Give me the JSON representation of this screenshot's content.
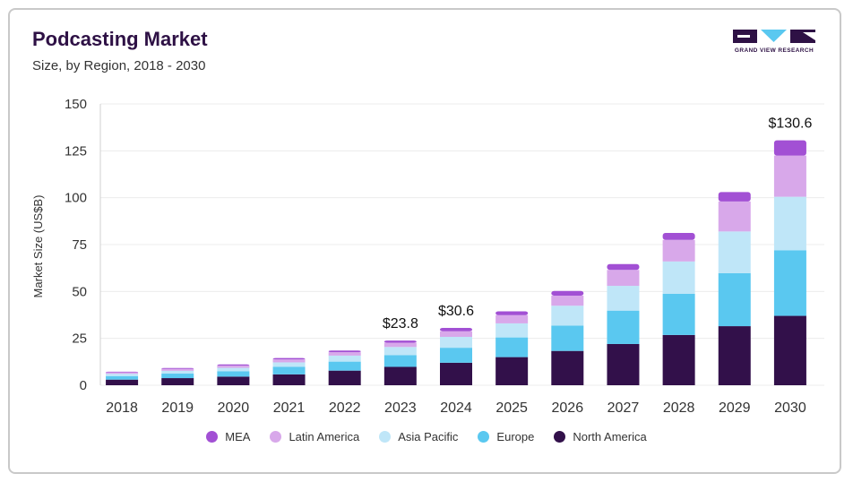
{
  "header": {
    "title": "Podcasting Market",
    "subtitle": "Size, by Region, 2018 - 2030",
    "logo_text": "GRAND VIEW RESEARCH"
  },
  "chart_data": {
    "type": "bar",
    "stacked": true,
    "categories": [
      "2018",
      "2019",
      "2020",
      "2021",
      "2022",
      "2023",
      "2024",
      "2025",
      "2026",
      "2027",
      "2028",
      "2029",
      "2030"
    ],
    "ylabel": "Market Size (US$B)",
    "xlabel": "",
    "ylim": [
      0,
      150
    ],
    "yticks": [
      0,
      25,
      50,
      75,
      100,
      125,
      150
    ],
    "grid": "horizontal",
    "legend_position": "bottom",
    "series": [
      {
        "name": "North America",
        "color": "#32104a",
        "values": [
          3.0,
          3.8,
          4.6,
          5.8,
          7.8,
          9.8,
          12.0,
          15.0,
          18.3,
          22.0,
          26.8,
          31.5,
          37.0
        ]
      },
      {
        "name": "Europe",
        "color": "#5ac8f0",
        "values": [
          1.9,
          2.4,
          2.9,
          4.0,
          4.8,
          6.2,
          8.0,
          10.5,
          13.5,
          17.8,
          22.0,
          28.3,
          35.0
        ]
      },
      {
        "name": "Asia Pacific",
        "color": "#bfe6f8",
        "values": [
          1.2,
          1.5,
          1.8,
          2.4,
          3.2,
          4.4,
          5.8,
          7.5,
          10.6,
          13.2,
          17.2,
          22.2,
          28.5
        ]
      },
      {
        "name": "Latin America",
        "color": "#d8a8ea",
        "values": [
          0.8,
          1.0,
          1.2,
          1.6,
          1.8,
          2.3,
          3.0,
          4.4,
          5.4,
          8.5,
          11.5,
          16.0,
          22.0
        ]
      },
      {
        "name": "MEA",
        "color": "#a250d4",
        "values": [
          0.3,
          0.5,
          0.6,
          0.7,
          0.9,
          1.1,
          1.8,
          2.0,
          2.5,
          3.1,
          3.7,
          5.0,
          8.1
        ]
      }
    ],
    "legend_order": [
      "MEA",
      "Latin America",
      "Asia Pacific",
      "Europe",
      "North America"
    ],
    "annotations": [
      {
        "category": "2023",
        "text": "$23.8",
        "value": 23.8
      },
      {
        "category": "2024",
        "text": "$30.6",
        "value": 30.6
      },
      {
        "category": "2030",
        "text": "$130.6",
        "value": 130.6
      }
    ]
  }
}
